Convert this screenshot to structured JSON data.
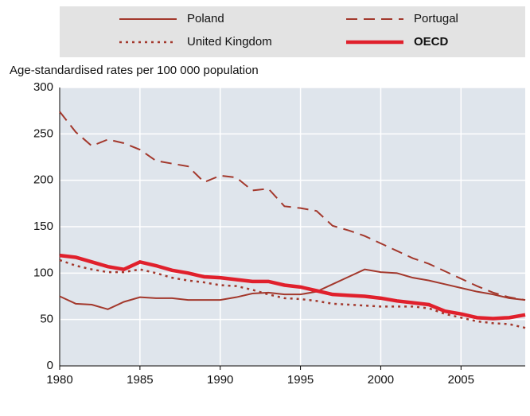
{
  "chart_data": {
    "type": "line",
    "y_label": "Age-standardised rates per 100 000 population",
    "x": [
      1980,
      1981,
      1982,
      1983,
      1984,
      1985,
      1986,
      1987,
      1988,
      1989,
      1990,
      1991,
      1992,
      1993,
      1994,
      1995,
      1996,
      1997,
      1998,
      1999,
      2000,
      2001,
      2002,
      2003,
      2004,
      2005,
      2006,
      2007,
      2008,
      2009
    ],
    "series": [
      {
        "name": "Poland",
        "color": "#a3382c",
        "style": "solid",
        "width": 2,
        "values": [
          75,
          67,
          66,
          61,
          69,
          74,
          73,
          73,
          71,
          71,
          71,
          74,
          78,
          79,
          77,
          77,
          80,
          88,
          96,
          104,
          101,
          100,
          95,
          92,
          88,
          84,
          80,
          77,
          73,
          71
        ]
      },
      {
        "name": "Portugal",
        "color": "#a3382c",
        "style": "dashed",
        "width": 2,
        "values": [
          274,
          252,
          237,
          244,
          240,
          233,
          221,
          218,
          215,
          198,
          205,
          203,
          189,
          191,
          172,
          170,
          167,
          151,
          146,
          140,
          132,
          124,
          116,
          110,
          102,
          94,
          86,
          79,
          74,
          71
        ]
      },
      {
        "name": "United Kingdom",
        "color": "#a3382c",
        "style": "dotted",
        "width": 2.5,
        "values": [
          114,
          108,
          104,
          101,
          101,
          104,
          100,
          95,
          92,
          90,
          87,
          86,
          82,
          77,
          73,
          72,
          70,
          67,
          66,
          65,
          64,
          64,
          64,
          62,
          56,
          52,
          48,
          46,
          45,
          41
        ]
      },
      {
        "name": "OECD",
        "color": "#e0202c",
        "style": "solid",
        "width": 4.5,
        "values": [
          119,
          117,
          112,
          107,
          104,
          112,
          108,
          103,
          100,
          96,
          95,
          93,
          91,
          91,
          87,
          85,
          81,
          77,
          76,
          75,
          73,
          70,
          68,
          66,
          59,
          56,
          52,
          51,
          52,
          55
        ]
      }
    ],
    "xlim": [
      1980,
      2009
    ],
    "xticks": [
      1980,
      1985,
      1990,
      1995,
      2000,
      2005
    ],
    "ylim": [
      0,
      300
    ],
    "yticks": [
      0,
      50,
      100,
      150,
      200,
      250,
      300
    ],
    "grid": true
  }
}
